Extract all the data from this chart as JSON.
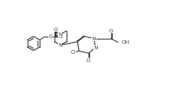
{
  "bg": "#ffffff",
  "bond_color": "#3a3a3a",
  "lw": 0.9,
  "fs": 5.3,
  "figsize": [
    2.54,
    1.22
  ],
  "dpi": 100
}
